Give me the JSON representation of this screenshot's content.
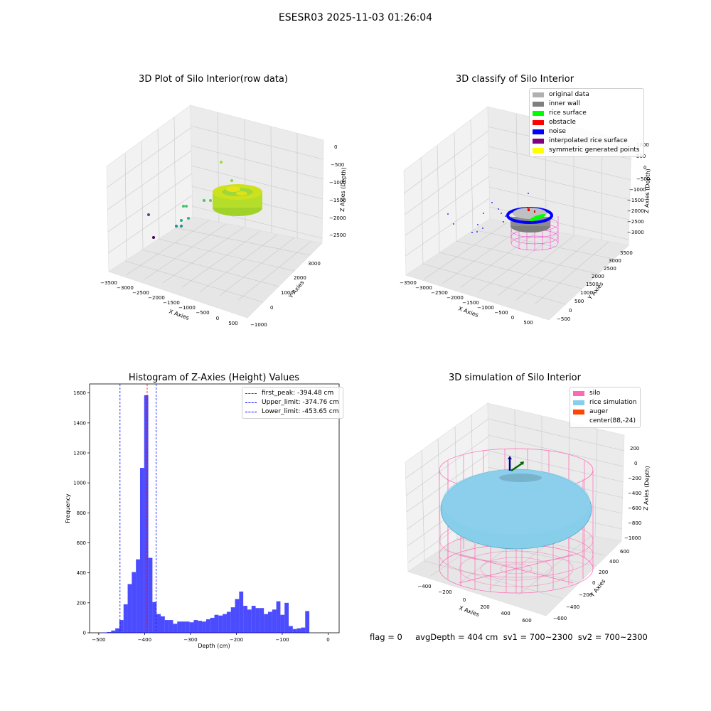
{
  "figure": {
    "suptitle": "ESESR03 2025-11-03 01:26:04"
  },
  "chart_data": [
    {
      "type": "scatter",
      "title": "3D Plot of Silo Interior(row data)",
      "xlabel": "X Axies",
      "ylabel": "Y Axies",
      "zlabel": "Z Axies (Depth)",
      "x_ticks": [
        "−3500",
        "−3000",
        "−2500",
        "−2000",
        "−1500",
        "−1000",
        "−500",
        "0",
        "500"
      ],
      "y_ticks": [
        "−1000",
        "0",
        "1000",
        "2000",
        "3000"
      ],
      "z_ticks": [
        "0",
        "−500",
        "−1000",
        "−1500",
        "−2000",
        "−2500"
      ],
      "colormap": "viridis"
    },
    {
      "type": "scatter",
      "title": "3D classify of Silo Interior",
      "xlabel": "X Axies",
      "ylabel": "Y Axies",
      "zlabel": "Z Axies (Depth)",
      "x_ticks": [
        "−3500",
        "−3000",
        "−2500",
        "−2000",
        "−1500",
        "−1000",
        "−500",
        "0",
        "500"
      ],
      "y_ticks": [
        "−500",
        "0",
        "500",
        "1000",
        "1500",
        "2000",
        "2500",
        "3000",
        "3500"
      ],
      "z_ticks": [
        "1000",
        "500",
        "0",
        "−500",
        "−1000",
        "−1500",
        "−2000",
        "−2500",
        "−3000"
      ],
      "legend": [
        {
          "label": "original data",
          "color": "#b0b0b0"
        },
        {
          "label": "inner wall",
          "color": "#808080"
        },
        {
          "label": "rice surface",
          "color": "#00ff00"
        },
        {
          "label": "obstacle",
          "color": "#ff0000"
        },
        {
          "label": "noise",
          "color": "#0000ff"
        },
        {
          "label": "interpolated rice surface",
          "color": "#800080"
        },
        {
          "label": "symmetric generated points",
          "color": "#ffff00"
        }
      ]
    },
    {
      "type": "bar",
      "title": "Histogram of Z-Axies (Height) Values",
      "xlabel": "Depth (cm)",
      "ylabel": "Frequency",
      "xlim": [
        -520,
        24
      ],
      "ylim": [
        0,
        1660
      ],
      "x_ticks": [
        -500,
        -400,
        -300,
        -200,
        -100,
        0
      ],
      "y_ticks": [
        0,
        200,
        400,
        600,
        800,
        1000,
        1200,
        1400,
        1600
      ],
      "x_tick_labels": [
        "−500",
        "−400",
        "−300",
        "−200",
        "−100",
        "0"
      ],
      "bar_color": "#0000ff",
      "bin_width": 9,
      "bin_edges_start": -500,
      "values": [
        1,
        2,
        5,
        15,
        30,
        85,
        190,
        325,
        405,
        490,
        1100,
        1585,
        500,
        205,
        125,
        110,
        85,
        85,
        60,
        75,
        75,
        75,
        70,
        85,
        80,
        75,
        90,
        100,
        120,
        115,
        125,
        140,
        170,
        225,
        275,
        180,
        155,
        180,
        165,
        165,
        125,
        140,
        155,
        210,
        120,
        200,
        45,
        25,
        30,
        35,
        145
      ],
      "lines": [
        {
          "label": "first_peak: -394.48 cm",
          "x": -394.48,
          "color": "#ff0000"
        },
        {
          "label": "Upper_limit: -374.76 cm",
          "x": -374.76,
          "color": "#0000ff"
        },
        {
          "label": "Lower_limit: -453.65 cm",
          "x": -453.65,
          "color": "#0000ff"
        }
      ]
    },
    {
      "type": "scatter",
      "title": "3D simulation of Silo Interior",
      "xlabel": "X Axies",
      "ylabel": "Y Axies",
      "zlabel": "Z Axies (Depth)",
      "x_ticks": [
        "−400",
        "−200",
        "0",
        "200",
        "400",
        "600"
      ],
      "y_ticks": [
        "−600",
        "−400",
        "−200",
        "0",
        "200",
        "400",
        "600"
      ],
      "z_ticks": [
        "200",
        "0",
        "−200",
        "−400",
        "−600",
        "−800",
        "−1000"
      ],
      "legend": [
        {
          "label": "silo",
          "color": "#ff69b4"
        },
        {
          "label": "rice simulation",
          "color": "#87ceeb"
        },
        {
          "label": "auger",
          "color": "#ff4500"
        },
        {
          "label": "center(88,-24)",
          "color": ""
        }
      ]
    }
  ],
  "footer": {
    "text": "flag = 0     avgDepth = 404 cm  sv1 = 700~2300  sv2 = 700~2300"
  }
}
